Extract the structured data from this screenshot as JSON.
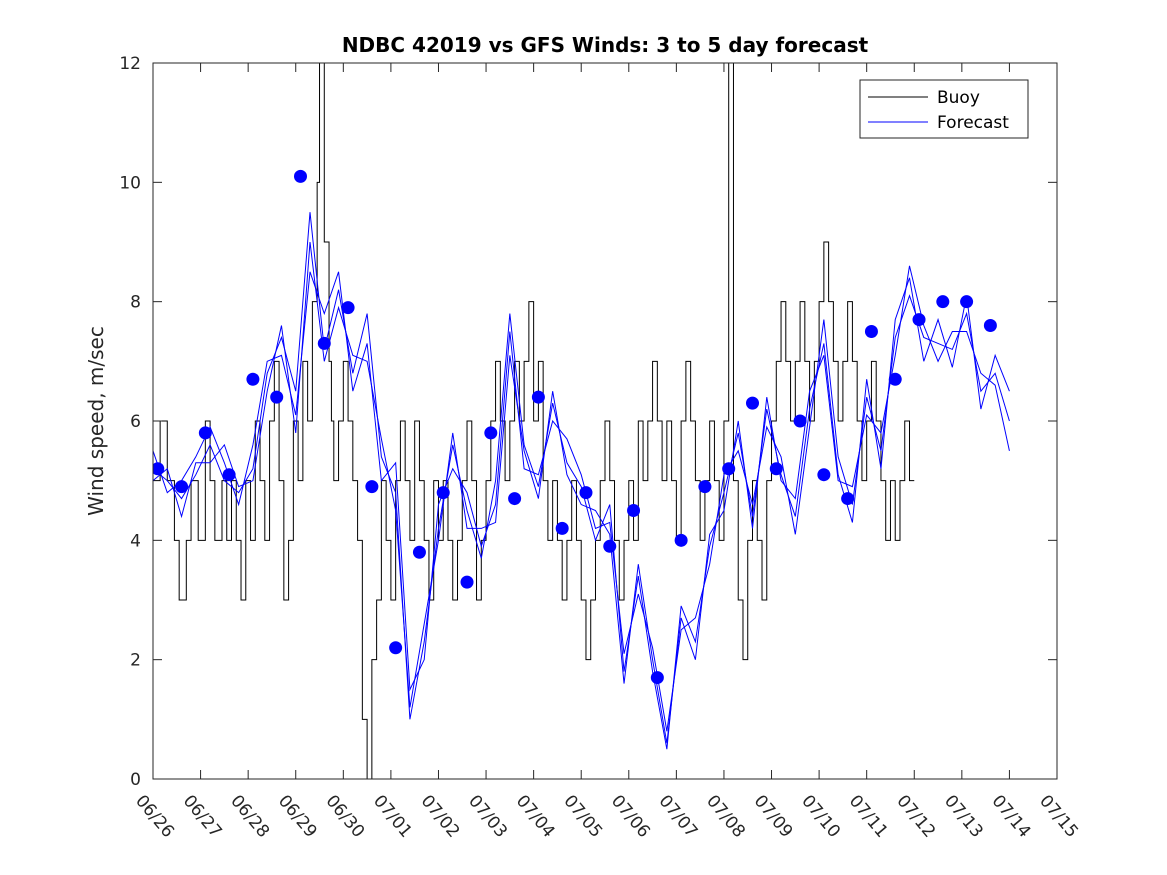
{
  "chart_data": {
    "type": "line",
    "title": "NDBC 42019 vs GFS Winds: 3 to 5 day forecast",
    "xlabel": "",
    "ylabel": "Wind speed, m/sec",
    "ylim": [
      0,
      12
    ],
    "yticks": [
      0,
      2,
      4,
      6,
      8,
      10,
      12
    ],
    "xlim": [
      "06/26",
      "07/15"
    ],
    "x_tick_labels": [
      "06/26",
      "06/27",
      "06/28",
      "06/29",
      "06/30",
      "07/01",
      "07/02",
      "07/03",
      "07/04",
      "07/05",
      "07/06",
      "07/07",
      "07/08",
      "07/09",
      "07/10",
      "07/11",
      "07/12",
      "07/13",
      "07/14",
      "07/15"
    ],
    "grid": false,
    "legend": {
      "position": "top-right",
      "entries": [
        "Buoy",
        "Forecast"
      ]
    },
    "colors": {
      "buoy": "#000000",
      "forecast": "#0000ff",
      "markers": "#0000ff"
    },
    "series": [
      {
        "name": "Buoy",
        "style": "step",
        "x_days_from_06_26": [
          0,
          0.15,
          0.3,
          0.45,
          0.55,
          0.7,
          0.8,
          0.95,
          1.1,
          1.2,
          1.3,
          1.45,
          1.55,
          1.65,
          1.75,
          1.85,
          1.95,
          2.05,
          2.15,
          2.25,
          2.35,
          2.45,
          2.55,
          2.65,
          2.75,
          2.85,
          2.95,
          3.05,
          3.15,
          3.25,
          3.35,
          3.45,
          3.5,
          3.6,
          3.7,
          3.75,
          3.8,
          3.9,
          4.0,
          4.1,
          4.2,
          4.3,
          4.4,
          4.5,
          4.6,
          4.7,
          4.8,
          4.9,
          5.0,
          5.1,
          5.2,
          5.3,
          5.4,
          5.5,
          5.6,
          5.7,
          5.8,
          5.9,
          6.0,
          6.1,
          6.2,
          6.3,
          6.4,
          6.5,
          6.6,
          6.7,
          6.8,
          6.9,
          7.0,
          7.1,
          7.2,
          7.3,
          7.4,
          7.5,
          7.6,
          7.7,
          7.8,
          7.9,
          8.0,
          8.1,
          8.2,
          8.3,
          8.4,
          8.5,
          8.6,
          8.7,
          8.8,
          8.9,
          9.0,
          9.1,
          9.2,
          9.3,
          9.4,
          9.5,
          9.6,
          9.7,
          9.8,
          9.9,
          10.0,
          10.1,
          10.2,
          10.3,
          10.4,
          10.5,
          10.6,
          10.7,
          10.8,
          10.9,
          11.0,
          11.1,
          11.2,
          11.3,
          11.4,
          11.5,
          11.6,
          11.7,
          11.8,
          11.9,
          12.0,
          12.1,
          12.2,
          12.3,
          12.4,
          12.5,
          12.6,
          12.7,
          12.8,
          12.9,
          13.0,
          13.1,
          13.2,
          13.3,
          13.4,
          13.5,
          13.6,
          13.7,
          13.8,
          13.9,
          14.0,
          14.1,
          14.2,
          14.3,
          14.4,
          14.5,
          14.6,
          14.7,
          14.8,
          14.9,
          15.0,
          15.1,
          15.2,
          15.3,
          15.4,
          15.5,
          15.6,
          15.7,
          15.8,
          15.9,
          16.0,
          16.1,
          16.2,
          16.3,
          16.4,
          16.5,
          16.6,
          16.7,
          16.8,
          16.9,
          17.0,
          17.1,
          17.2,
          17.3,
          17.4,
          17.5,
          17.6,
          17.7,
          17.8,
          17.9,
          18.0
        ],
        "values": [
          5,
          6,
          5,
          4,
          3,
          4,
          5,
          4,
          6,
          5,
          4,
          5,
          4,
          5,
          4,
          3,
          5,
          4,
          6,
          5,
          4,
          6,
          7,
          5,
          3,
          4,
          6,
          5,
          7,
          6,
          8,
          10,
          12,
          9,
          7,
          6,
          5,
          6,
          7,
          6,
          5,
          4,
          1,
          0,
          2,
          3,
          5,
          4,
          3,
          5,
          6,
          5,
          4,
          6,
          5,
          4,
          3,
          5,
          4,
          5,
          4,
          3,
          4,
          5,
          6,
          5,
          3,
          4,
          5,
          6,
          7,
          6,
          5,
          6,
          7,
          6,
          7,
          8,
          6,
          7,
          5,
          4,
          5,
          4,
          3,
          4,
          5,
          4,
          3,
          2,
          3,
          4,
          5,
          6,
          5,
          4,
          3,
          4,
          5,
          4,
          6,
          5,
          6,
          7,
          6,
          5,
          6,
          5,
          4,
          6,
          7,
          6,
          5,
          4,
          5,
          6,
          5,
          4,
          6,
          12,
          5,
          3,
          2,
          4,
          5,
          4,
          3,
          5,
          6,
          7,
          8,
          7,
          6,
          7,
          8,
          7,
          6,
          7,
          8,
          9,
          8,
          7,
          6,
          7,
          8,
          7,
          6,
          5,
          6,
          7,
          6,
          5,
          4,
          5,
          4,
          5,
          6,
          5
        ]
      },
      {
        "name": "Forecast",
        "style": "line",
        "runs": [
          {
            "x": [
              0,
              0.3,
              0.6,
              0.9,
              1.2,
              1.5,
              1.8,
              2.1,
              2.4,
              2.7,
              3.0,
              3.3,
              3.6,
              3.9,
              4.2,
              4.5,
              4.8,
              5.1,
              5.4,
              5.7,
              6.0,
              6.3,
              6.6,
              6.9,
              7.2,
              7.5,
              7.8,
              8.1,
              8.4,
              8.7,
              9.0,
              9.3,
              9.6,
              9.9,
              10.2,
              10.5,
              10.8,
              11.1,
              11.4,
              11.7,
              12.0,
              12.3,
              12.6,
              12.9,
              13.2,
              13.5,
              13.8,
              14.1,
              14.4,
              14.7,
              15.0,
              15.3,
              15.6,
              15.9,
              16.2,
              16.5,
              16.8,
              17.1,
              17.4,
              17.7,
              18.0
            ],
            "values": [
              5.2,
              5.0,
              4.7,
              5.1,
              5.6,
              5.0,
              4.8,
              5.2,
              6.8,
              7.4,
              6.5,
              9.5,
              7.2,
              8.2,
              6.8,
              7.8,
              5.4,
              4.8,
              1.0,
              2.3,
              4.2,
              5.6,
              4.5,
              3.7,
              5.0,
              7.8,
              5.6,
              4.9,
              6.3,
              5.3,
              4.9,
              4.0,
              4.6,
              1.8,
              3.4,
              1.8,
              0.5,
              2.9,
              2.3,
              3.9,
              4.8,
              5.8,
              4.4,
              6.2,
              5.1,
              4.4,
              6.2,
              7.3,
              5.1,
              4.3,
              6.7,
              5.2,
              7.7,
              8.4,
              7.0,
              7.7,
              6.9,
              8.1,
              6.2,
              7.1,
              6.5
            ]
          },
          {
            "x": [
              0,
              0.3,
              0.6,
              0.9,
              1.2,
              1.5,
              1.8,
              2.1,
              2.4,
              2.7,
              3.0,
              3.3,
              3.6,
              3.9,
              4.2,
              4.5,
              4.8,
              5.1,
              5.4,
              5.7,
              6.0,
              6.3,
              6.6,
              6.9,
              7.2,
              7.5,
              7.8,
              8.1,
              8.4,
              8.7,
              9.0,
              9.3,
              9.6,
              9.9,
              10.2,
              10.5,
              10.8,
              11.1,
              11.4,
              11.7,
              12.0,
              12.3,
              12.6,
              12.9,
              13.2,
              13.5,
              13.8,
              14.1,
              14.4,
              14.7,
              15.0,
              15.3,
              15.6,
              15.9,
              16.2,
              16.5,
              16.8,
              17.1,
              17.4,
              17.7,
              18.0
            ],
            "values": [
              5.5,
              4.8,
              5.0,
              5.4,
              5.9,
              5.3,
              4.6,
              5.6,
              7.0,
              7.1,
              6.1,
              8.5,
              7.8,
              8.5,
              6.5,
              7.3,
              5.0,
              5.3,
              1.5,
              2.0,
              4.6,
              5.2,
              4.8,
              3.9,
              4.6,
              7.5,
              5.2,
              5.1,
              6.0,
              5.7,
              5.1,
              4.2,
              4.3,
              2.1,
              3.1,
              2.2,
              0.8,
              2.5,
              2.7,
              3.6,
              5.1,
              5.5,
              4.6,
              5.9,
              5.4,
              4.1,
              5.9,
              7.7,
              5.4,
              4.6,
              6.4,
              5.5,
              7.4,
              8.1,
              7.4,
              7.3,
              7.2,
              7.8,
              6.5,
              6.8,
              6.0
            ]
          },
          {
            "x": [
              0,
              0.3,
              0.6,
              0.9,
              1.2,
              1.5,
              1.8,
              2.1,
              2.4,
              2.7,
              3.0,
              3.3,
              3.6,
              3.9,
              4.2,
              4.5,
              4.8,
              5.1,
              5.4,
              5.7,
              6.0,
              6.3,
              6.6,
              6.9,
              7.2,
              7.5,
              7.8,
              8.1,
              8.4,
              8.7,
              9.0,
              9.3,
              9.6,
              9.9,
              10.2,
              10.5,
              10.8,
              11.1,
              11.4,
              11.7,
              12.0,
              12.3,
              12.6,
              12.9,
              13.2,
              13.5,
              13.8,
              14.1,
              14.4,
              14.7,
              15.0,
              15.3,
              15.6,
              15.9,
              16.2,
              16.5,
              16.8,
              17.1,
              17.4,
              17.7,
              18.0
            ],
            "values": [
              5.0,
              5.2,
              4.4,
              5.3,
              5.3,
              5.6,
              4.9,
              5.0,
              6.5,
              7.6,
              5.8,
              9.0,
              7.0,
              7.9,
              7.1,
              7.0,
              5.7,
              4.5,
              1.2,
              2.6,
              4.0,
              5.8,
              4.2,
              4.2,
              4.3,
              7.1,
              5.5,
              4.7,
              6.5,
              5.1,
              4.6,
              4.5,
              4.1,
              1.6,
              3.6,
              2.0,
              0.6,
              2.7,
              2.0,
              4.1,
              4.5,
              6.0,
              4.2,
              6.4,
              5.0,
              4.7,
              6.5,
              7.1,
              5.0,
              4.9,
              6.1,
              5.8,
              7.1,
              8.6,
              7.6,
              7.0,
              7.5,
              7.5,
              6.8,
              6.6,
              5.5
            ]
          }
        ]
      }
    ],
    "markers": {
      "name": "Forecast markers",
      "x_days_from_06_26": [
        0.1,
        0.6,
        1.1,
        1.6,
        2.1,
        2.6,
        3.1,
        3.6,
        4.1,
        4.6,
        5.1,
        5.6,
        6.1,
        6.6,
        7.1,
        7.6,
        8.1,
        8.6,
        9.1,
        9.6,
        10.1,
        10.6,
        11.1,
        11.6,
        12.1,
        12.6,
        13.1,
        13.6,
        14.1,
        14.6,
        15.1,
        15.6,
        16.1,
        16.6,
        17.1,
        17.6
      ],
      "values": [
        5.2,
        4.9,
        5.8,
        5.1,
        6.7,
        6.4,
        10.1,
        7.3,
        7.9,
        4.9,
        2.2,
        3.8,
        4.8,
        3.3,
        5.8,
        4.7,
        6.4,
        4.2,
        4.8,
        3.9,
        4.5,
        1.7,
        4.0,
        4.9,
        5.2,
        6.3,
        5.2,
        6.0,
        5.1,
        4.7,
        7.5,
        6.7,
        7.7,
        8.0,
        8.0,
        7.6
      ]
    }
  }
}
